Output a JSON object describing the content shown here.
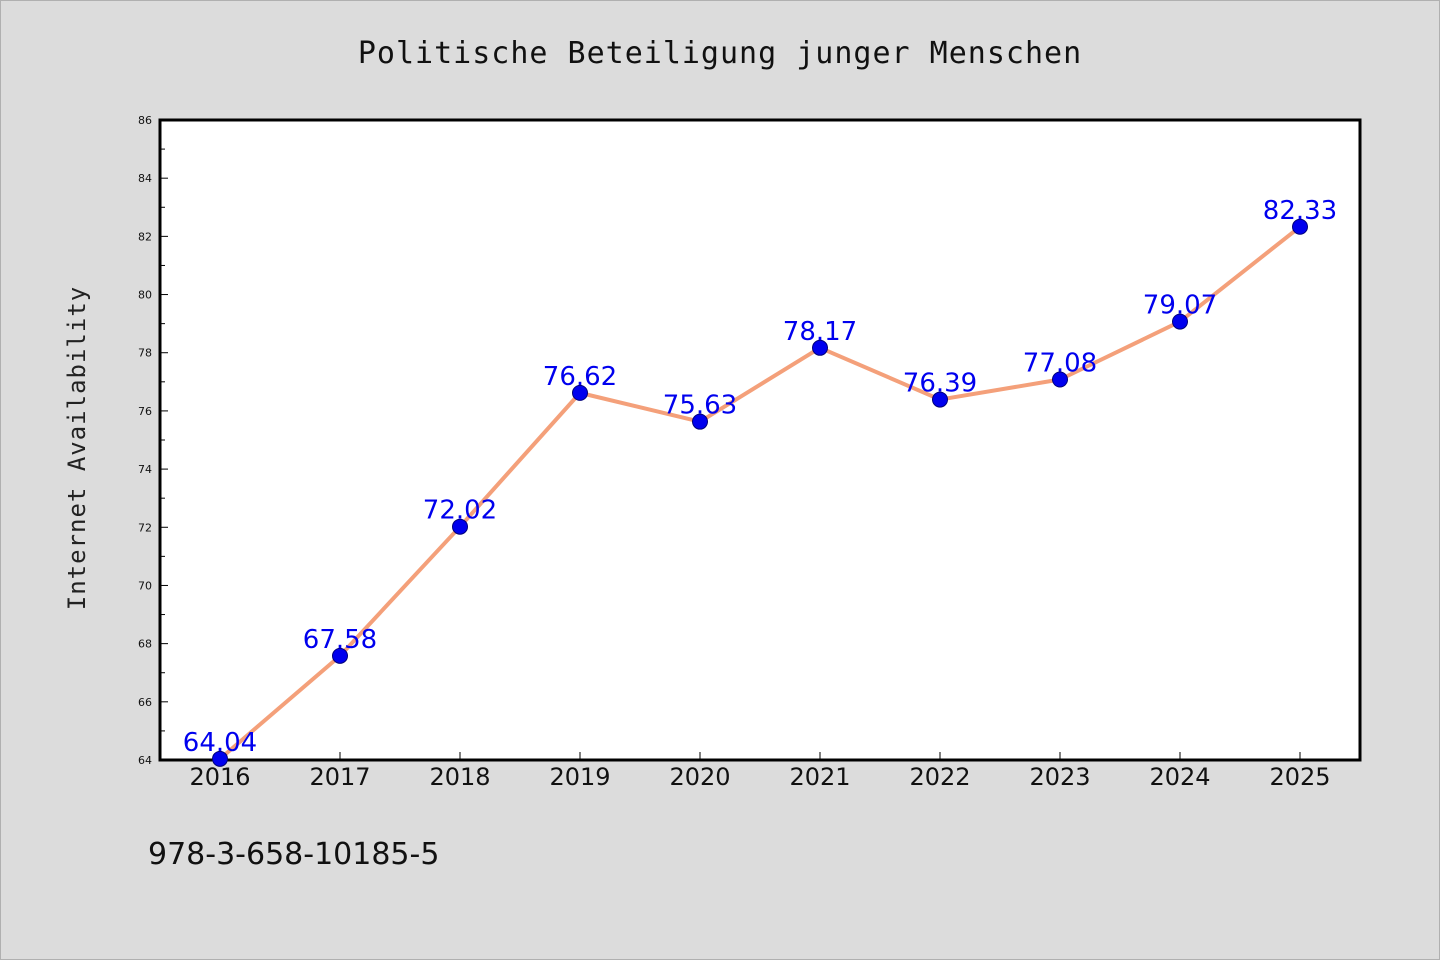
{
  "chart_data": {
    "type": "line",
    "title": "Politische Beteiligung junger Menschen",
    "xlabel": "",
    "ylabel": "Internet Availability",
    "x": [
      "2016",
      "2017",
      "2018",
      "2019",
      "2020",
      "2021",
      "2022",
      "2023",
      "2024",
      "2025"
    ],
    "series": [
      {
        "values": [
          64.04,
          67.58,
          72.02,
          76.62,
          75.63,
          78.17,
          76.39,
          77.08,
          79.07,
          82.33
        ],
        "data_labels": [
          "64.04",
          "67.58",
          "72.02",
          "76.62",
          "75.63",
          "78.17",
          "76.39",
          "77.08",
          "79.07",
          "82.33"
        ]
      }
    ],
    "ylim": [
      64,
      86
    ],
    "yticks": [
      "64",
      "66",
      "68",
      "70",
      "72",
      "74",
      "76",
      "78",
      "80",
      "82",
      "84",
      "86"
    ],
    "grid": false,
    "colors": {
      "line": "#f4a07a",
      "marker": "#0000ee",
      "marker_edge": "#00007a",
      "data_label": "#0000ee",
      "background": "#dcdcdc",
      "plot_area": "#ffffff"
    }
  },
  "annotation": "978-3-658-10185-5"
}
